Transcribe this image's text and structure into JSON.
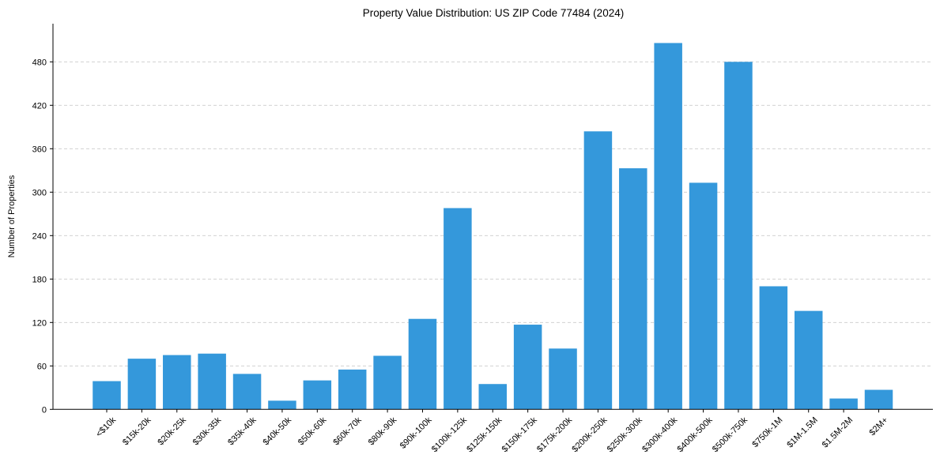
{
  "chart_data": {
    "type": "bar",
    "title": "Property Value Distribution: US ZIP Code 77484 (2024)",
    "xlabel": "",
    "ylabel": "Number of Properties",
    "categories": [
      "<$10k",
      "$15k-20k",
      "$20k-25k",
      "$30k-35k",
      "$35k-40k",
      "$40k-50k",
      "$50k-60k",
      "$60k-70k",
      "$80k-90k",
      "$90k-100k",
      "$100k-125k",
      "$125k-150k",
      "$150k-175k",
      "$175k-200k",
      "$200k-250k",
      "$250k-300k",
      "$300k-400k",
      "$400k-500k",
      "$500k-750k",
      "$750k-1M",
      "$1M-1.5M",
      "$1.5M-2M",
      "$2M+"
    ],
    "values": [
      39,
      70,
      75,
      77,
      49,
      12,
      40,
      55,
      74,
      125,
      278,
      35,
      117,
      84,
      384,
      333,
      506,
      313,
      480,
      170,
      136,
      15,
      27
    ],
    "ylim": [
      0,
      531
    ],
    "yticks": [
      0,
      60,
      120,
      180,
      240,
      300,
      360,
      420,
      480
    ],
    "grid": {
      "y": true,
      "style": "dashed",
      "color": "#cccccc"
    },
    "bar_color": "#3498db",
    "xtick_rotation": 45,
    "legend": null
  }
}
